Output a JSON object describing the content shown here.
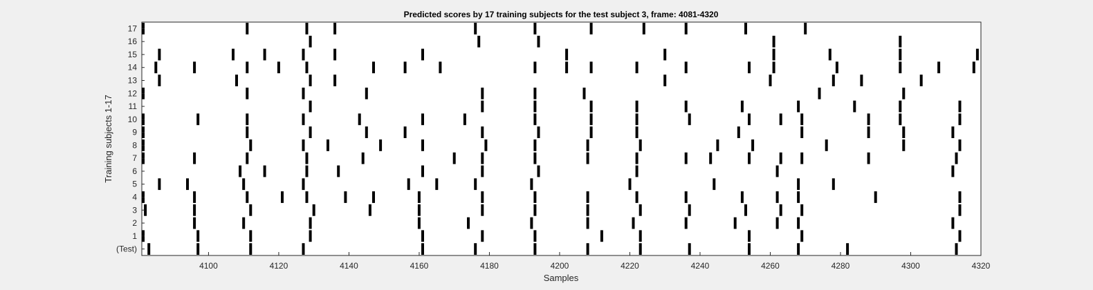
{
  "chart_data": {
    "type": "raster",
    "title": "Predicted scores by 17 training subjects for the test subject 3, frame: 4081-4320",
    "xlabel": "Samples",
    "ylabel": "Training subjects 1-17",
    "xlim": [
      4081,
      4320
    ],
    "xticks": [
      4100,
      4120,
      4140,
      4160,
      4180,
      4200,
      4220,
      4240,
      4260,
      4280,
      4300,
      4320
    ],
    "rows": [
      {
        "label": "(Test)",
        "events": [
          4083,
          4097,
          4112,
          4127,
          4161,
          4176,
          4193,
          4208,
          4223,
          4237,
          4254,
          4268,
          4282,
          4313
        ]
      },
      {
        "label": "1",
        "events": [
          4081,
          4097,
          4112,
          4129,
          4161,
          4178,
          4193,
          4212,
          4223,
          4254,
          4269,
          4314
        ]
      },
      {
        "label": "2",
        "events": [
          4096,
          4110,
          4129,
          4160,
          4174,
          4192,
          4208,
          4221,
          4236,
          4250,
          4262,
          4268,
          4312
        ]
      },
      {
        "label": "3",
        "events": [
          4082,
          4096,
          4112,
          4130,
          4146,
          4160,
          4178,
          4193,
          4208,
          4223,
          4237,
          4253,
          4263,
          4269,
          4314
        ]
      },
      {
        "label": "4",
        "events": [
          4081,
          4096,
          4111,
          4121,
          4128,
          4139,
          4147,
          4160,
          4178,
          4193,
          4208,
          4222,
          4236,
          4252,
          4262,
          4268,
          4290,
          4314
        ]
      },
      {
        "label": "5",
        "events": [
          4086,
          4094,
          4110,
          4127,
          4157,
          4165,
          4176,
          4192,
          4220,
          4244,
          4268,
          4278
        ]
      },
      {
        "label": "6",
        "events": [
          4109,
          4116,
          4128,
          4137,
          4161,
          4178,
          4194,
          4222,
          4262,
          4312
        ]
      },
      {
        "label": "7",
        "events": [
          4081,
          4096,
          4111,
          4128,
          4144,
          4170,
          4178,
          4193,
          4208,
          4222,
          4236,
          4243,
          4254,
          4263,
          4269,
          4288,
          4313
        ]
      },
      {
        "label": "8",
        "events": [
          4081,
          4112,
          4127,
          4134,
          4149,
          4161,
          4179,
          4193,
          4208,
          4223,
          4245,
          4255,
          4276,
          4298,
          4314
        ]
      },
      {
        "label": "9",
        "events": [
          4080,
          4111,
          4129,
          4145,
          4156,
          4178,
          4194,
          4209,
          4222,
          4251,
          4269,
          4288,
          4298,
          4312
        ]
      },
      {
        "label": "10",
        "events": [
          4081,
          4097,
          4111,
          4127,
          4143,
          4161,
          4173,
          4193,
          4209,
          4222,
          4237,
          4254,
          4263,
          4269,
          4288,
          4297,
          4314
        ]
      },
      {
        "label": "11",
        "events": [
          4129,
          4178,
          4193,
          4209,
          4222,
          4236,
          4252,
          4268,
          4284,
          4297,
          4314
        ]
      },
      {
        "label": "12",
        "events": [
          4081,
          4111,
          4127,
          4145,
          4178,
          4193,
          4207,
          4274,
          4298
        ]
      },
      {
        "label": "13",
        "events": [
          4086,
          4108,
          4129,
          4136,
          4230,
          4260,
          4278,
          4286,
          4303
        ]
      },
      {
        "label": "14",
        "events": [
          4085,
          4096,
          4111,
          4120,
          4128,
          4147,
          4156,
          4166,
          4193,
          4202,
          4209,
          4222,
          4236,
          4254,
          4261,
          4279,
          4297,
          4308,
          4318
        ]
      },
      {
        "label": "15",
        "events": [
          4086,
          4107,
          4116,
          4127,
          4136,
          4161,
          4202,
          4230,
          4261,
          4277,
          4297,
          4319
        ]
      },
      {
        "label": "16",
        "events": [
          4129,
          4177,
          4194,
          4261,
          4297
        ]
      },
      {
        "label": "17",
        "events": [
          4081,
          4111,
          4128,
          4136,
          4176,
          4193,
          4209,
          4224,
          4236,
          4253,
          4270
        ]
      }
    ]
  }
}
